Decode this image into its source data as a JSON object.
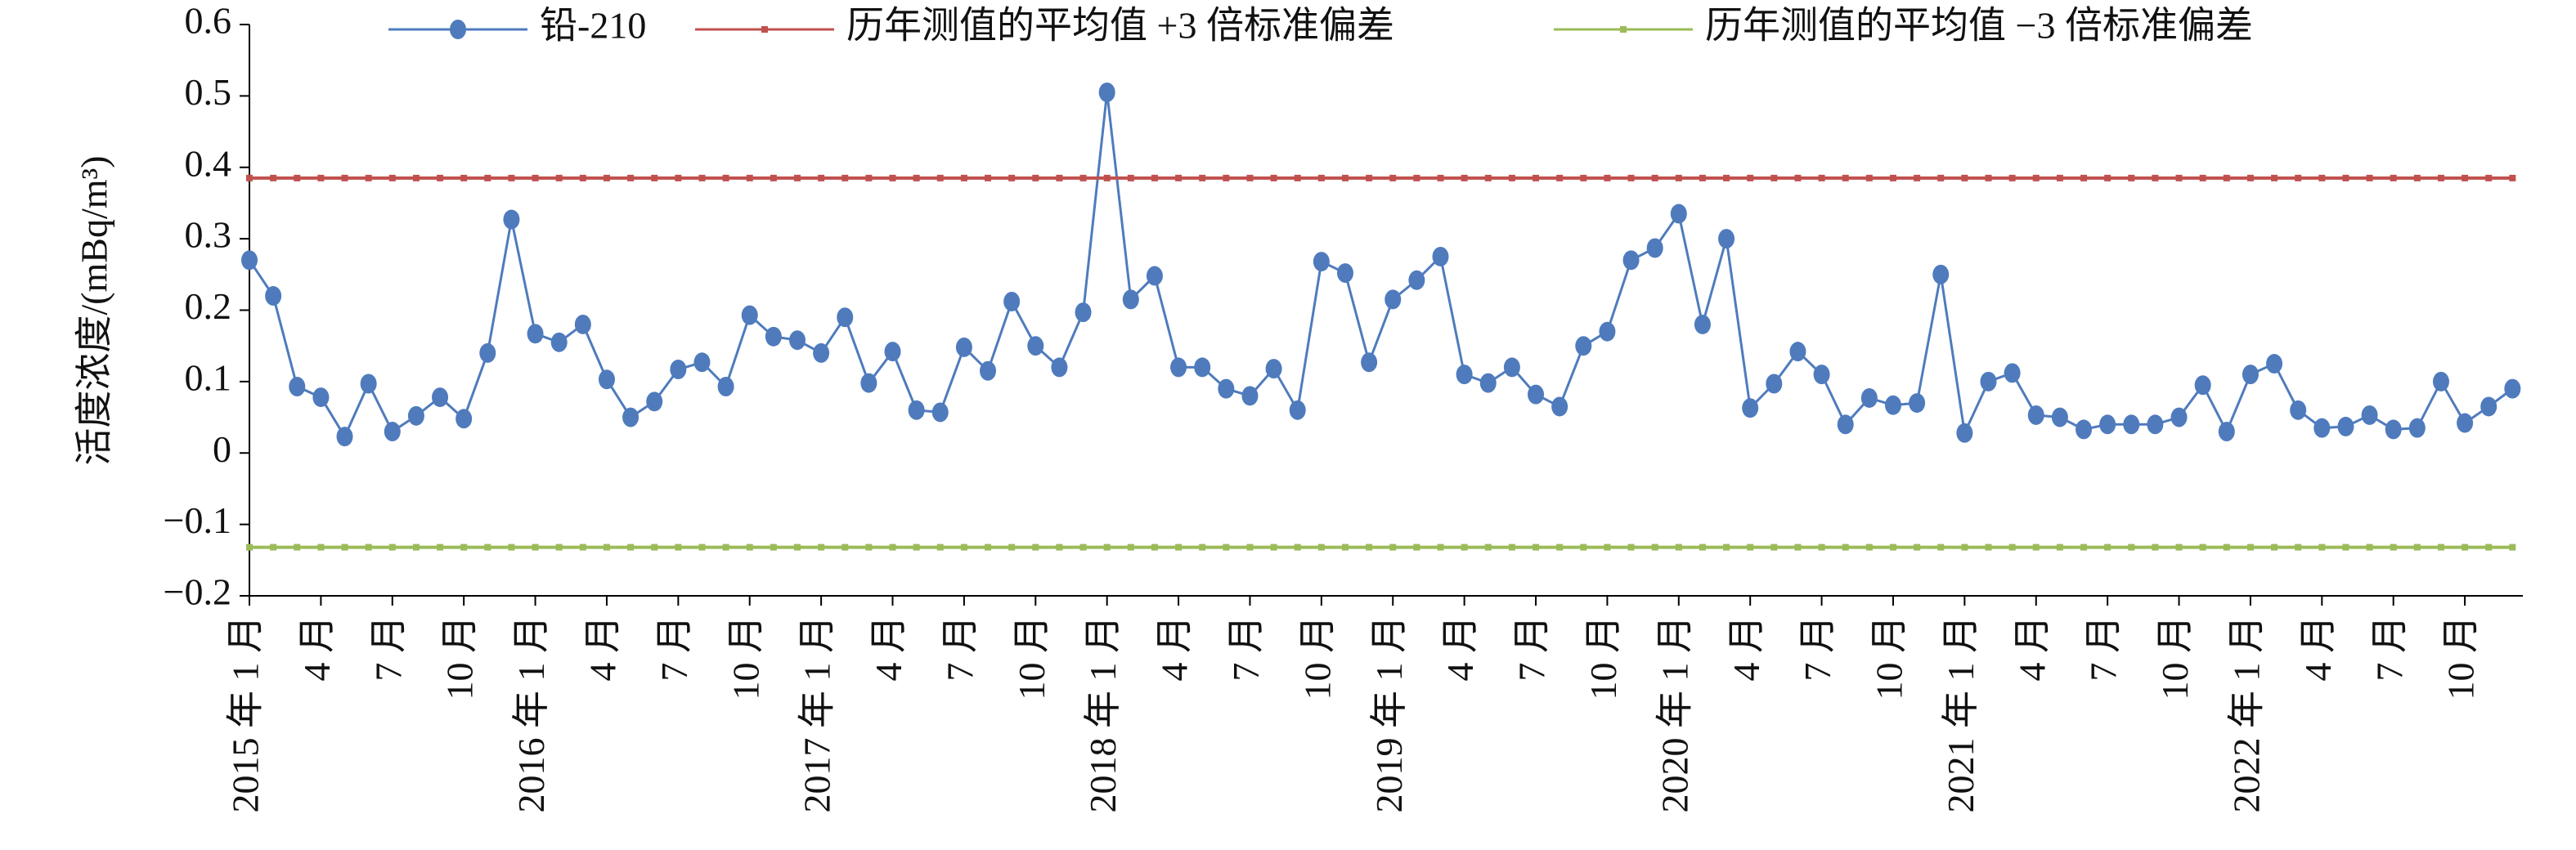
{
  "chart_data": {
    "type": "line",
    "y_label": "活度浓度/(mBq/m³)",
    "categories": [
      "2015 年 1 月",
      null,
      null,
      "4 月",
      null,
      null,
      "7 月",
      null,
      null,
      "10 月",
      null,
      null,
      "2016 年 1 月",
      null,
      null,
      "4 月",
      null,
      null,
      "7 月",
      null,
      null,
      "10 月",
      null,
      null,
      "2017 年 1 月",
      null,
      null,
      "4 月",
      null,
      null,
      "7 月",
      null,
      null,
      "10 月",
      null,
      null,
      "2018 年 1 月",
      null,
      null,
      "4 月",
      null,
      null,
      "7 月",
      null,
      null,
      "10 月",
      null,
      null,
      "2019 年 1 月",
      null,
      null,
      "4 月",
      null,
      null,
      "7 月",
      null,
      null,
      "10 月",
      null,
      null,
      "2020 年 1 月",
      null,
      null,
      "4 月",
      null,
      null,
      "7 月",
      null,
      null,
      "10 月",
      null,
      null,
      "2021 年 1 月",
      null,
      null,
      "4 月",
      null,
      null,
      "7 月",
      null,
      null,
      "10 月",
      null,
      null,
      "2022 年 1 月",
      null,
      null,
      "4 月",
      null,
      null,
      "7 月",
      null,
      null,
      "10 月",
      null,
      null
    ],
    "series": [
      {
        "name": "铅-210",
        "color": "#4f7bbd",
        "marker": "circle",
        "values": [
          0.27,
          0.22,
          0.093,
          0.078,
          0.023,
          0.097,
          0.03,
          0.052,
          0.078,
          0.048,
          0.14,
          0.327,
          0.167,
          0.155,
          0.18,
          0.103,
          0.05,
          0.072,
          0.117,
          0.127,
          0.093,
          0.193,
          0.163,
          0.158,
          0.14,
          0.19,
          0.098,
          0.142,
          0.06,
          0.057,
          0.148,
          0.115,
          0.212,
          0.15,
          0.12,
          0.197,
          0.505,
          0.215,
          0.248,
          0.12,
          0.12,
          0.09,
          0.08,
          0.118,
          0.06,
          0.268,
          0.252,
          0.127,
          0.215,
          0.242,
          0.275,
          0.11,
          0.098,
          0.12,
          0.082,
          0.065,
          0.15,
          0.17,
          0.27,
          0.287,
          0.335,
          0.18,
          0.3,
          0.063,
          0.097,
          0.142,
          0.11,
          0.04,
          0.077,
          0.067,
          0.07,
          0.25,
          0.028,
          0.1,
          0.112,
          0.053,
          0.05,
          0.033,
          0.04,
          0.04,
          0.04,
          0.05,
          0.095,
          0.03,
          0.11,
          0.125,
          0.06,
          0.035,
          0.037,
          0.053,
          0.033,
          0.035,
          0.1,
          0.042,
          0.065,
          0.09
        ]
      },
      {
        "name": "历年测值的平均值 +3 倍标准偏差",
        "color": "#c0504d",
        "marker": "square",
        "values": [
          0.385,
          0.385,
          0.385,
          0.385,
          0.385,
          0.385,
          0.385,
          0.385,
          0.385,
          0.385,
          0.385,
          0.385,
          0.385,
          0.385,
          0.385,
          0.385,
          0.385,
          0.385,
          0.385,
          0.385,
          0.385,
          0.385,
          0.385,
          0.385,
          0.385,
          0.385,
          0.385,
          0.385,
          0.385,
          0.385,
          0.385,
          0.385,
          0.385,
          0.385,
          0.385,
          0.385,
          0.385,
          0.385,
          0.385,
          0.385,
          0.385,
          0.385,
          0.385,
          0.385,
          0.385,
          0.385,
          0.385,
          0.385,
          0.385,
          0.385,
          0.385,
          0.385,
          0.385,
          0.385,
          0.385,
          0.385,
          0.385,
          0.385,
          0.385,
          0.385,
          0.385,
          0.385,
          0.385,
          0.385,
          0.385,
          0.385,
          0.385,
          0.385,
          0.385,
          0.385,
          0.385,
          0.385,
          0.385,
          0.385,
          0.385,
          0.385,
          0.385,
          0.385,
          0.385,
          0.385,
          0.385,
          0.385,
          0.385,
          0.385,
          0.385,
          0.385,
          0.385,
          0.385,
          0.385,
          0.385,
          0.385,
          0.385,
          0.385,
          0.385,
          0.385,
          0.385
        ]
      },
      {
        "name": "历年测值的平均值 −3 倍标准偏差",
        "color": "#9bbb59",
        "marker": "square",
        "values": [
          -0.132,
          -0.132,
          -0.132,
          -0.132,
          -0.132,
          -0.132,
          -0.132,
          -0.132,
          -0.132,
          -0.132,
          -0.132,
          -0.132,
          -0.132,
          -0.132,
          -0.132,
          -0.132,
          -0.132,
          -0.132,
          -0.132,
          -0.132,
          -0.132,
          -0.132,
          -0.132,
          -0.132,
          -0.132,
          -0.132,
          -0.132,
          -0.132,
          -0.132,
          -0.132,
          -0.132,
          -0.132,
          -0.132,
          -0.132,
          -0.132,
          -0.132,
          -0.132,
          -0.132,
          -0.132,
          -0.132,
          -0.132,
          -0.132,
          -0.132,
          -0.132,
          -0.132,
          -0.132,
          -0.132,
          -0.132,
          -0.132,
          -0.132,
          -0.132,
          -0.132,
          -0.132,
          -0.132,
          -0.132,
          -0.132,
          -0.132,
          -0.132,
          -0.132,
          -0.132,
          -0.132,
          -0.132,
          -0.132,
          -0.132,
          -0.132,
          -0.132,
          -0.132,
          -0.132,
          -0.132,
          -0.132,
          -0.132,
          -0.132,
          -0.132,
          -0.132,
          -0.132,
          -0.132,
          -0.132,
          -0.132,
          -0.132,
          -0.132,
          -0.132,
          -0.132,
          -0.132,
          -0.132,
          -0.132,
          -0.132,
          -0.132,
          -0.132,
          -0.132,
          -0.132,
          -0.132,
          -0.132,
          -0.132,
          -0.132,
          -0.132,
          -0.132
        ]
      }
    ],
    "ylim": [
      -0.2,
      0.6
    ],
    "yticks": [
      {
        "value": -0.2,
        "label": "−0.2"
      },
      {
        "value": -0.1,
        "label": "−0.1"
      },
      0,
      0.1,
      0.2,
      0.3,
      0.4,
      0.5,
      0.6
    ],
    "grid": false,
    "legend": "top"
  }
}
